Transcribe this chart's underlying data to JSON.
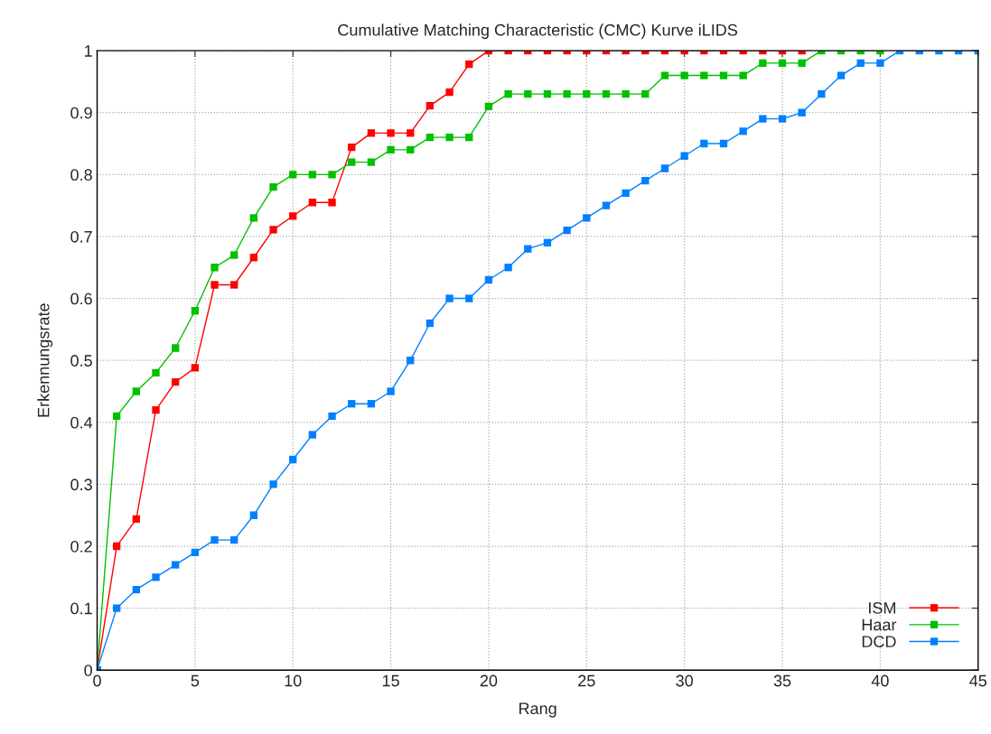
{
  "chart_data": {
    "type": "line",
    "title": "Cumulative Matching Characteristic (CMC) Kurve iLIDS",
    "xlabel": "Rang",
    "ylabel": "Erkennungsrate",
    "x": [
      0,
      1,
      2,
      3,
      4,
      5,
      6,
      7,
      8,
      9,
      10,
      11,
      12,
      13,
      14,
      15,
      16,
      17,
      18,
      19,
      20,
      21,
      22,
      23,
      24,
      25,
      26,
      27,
      28,
      29,
      30,
      31,
      32,
      33,
      34,
      35,
      36,
      37,
      38,
      39,
      40,
      41,
      42,
      43,
      44,
      45
    ],
    "series": [
      {
        "name": "ISM",
        "color": "#ff0000",
        "values": [
          0,
          0.2,
          0.244,
          0.42,
          0.465,
          0.488,
          0.622,
          0.622,
          0.666,
          0.711,
          0.733,
          0.755,
          0.755,
          0.844,
          0.867,
          0.867,
          0.867,
          0.911,
          0.933,
          0.978,
          1,
          1,
          1,
          1,
          1,
          1,
          1,
          1,
          1,
          1,
          1,
          1,
          1,
          1,
          1,
          1,
          1,
          null,
          null,
          null,
          null,
          null,
          null,
          null,
          null,
          null
        ]
      },
      {
        "name": "Haar",
        "color": "#00c000",
        "values": [
          0,
          0.41,
          0.45,
          0.48,
          0.52,
          0.58,
          0.65,
          0.67,
          0.73,
          0.78,
          0.8,
          0.8,
          0.8,
          0.82,
          0.82,
          0.84,
          0.84,
          0.86,
          0.86,
          0.86,
          0.91,
          0.93,
          0.93,
          0.93,
          0.93,
          0.93,
          0.93,
          0.93,
          0.93,
          0.96,
          0.96,
          0.96,
          0.96,
          0.96,
          0.98,
          0.98,
          0.98,
          1,
          1,
          1,
          1,
          null,
          null,
          null,
          null,
          null
        ]
      },
      {
        "name": "DCD",
        "color": "#0080ff",
        "values": [
          0,
          0.1,
          0.13,
          0.15,
          0.17,
          0.19,
          0.21,
          0.21,
          0.25,
          0.3,
          0.34,
          0.38,
          0.41,
          0.43,
          0.43,
          0.45,
          0.5,
          0.56,
          0.6,
          0.6,
          0.63,
          0.65,
          0.68,
          0.69,
          0.71,
          0.73,
          0.75,
          0.77,
          0.79,
          0.81,
          0.83,
          0.85,
          0.85,
          0.87,
          0.89,
          0.89,
          0.9,
          0.93,
          0.96,
          0.98,
          0.98,
          1,
          1,
          1,
          1,
          1
        ]
      }
    ],
    "xlim": [
      0,
      45
    ],
    "xticks": [
      0,
      5,
      10,
      15,
      20,
      25,
      30,
      35,
      40,
      45
    ],
    "ylim": [
      0,
      1
    ],
    "yticks": [
      0,
      0.1,
      0.2,
      0.3,
      0.4,
      0.5,
      0.6,
      0.7,
      0.8,
      0.9,
      1
    ],
    "grid": true,
    "legend": "bottom right",
    "marker": "square",
    "line_style": "solid"
  }
}
